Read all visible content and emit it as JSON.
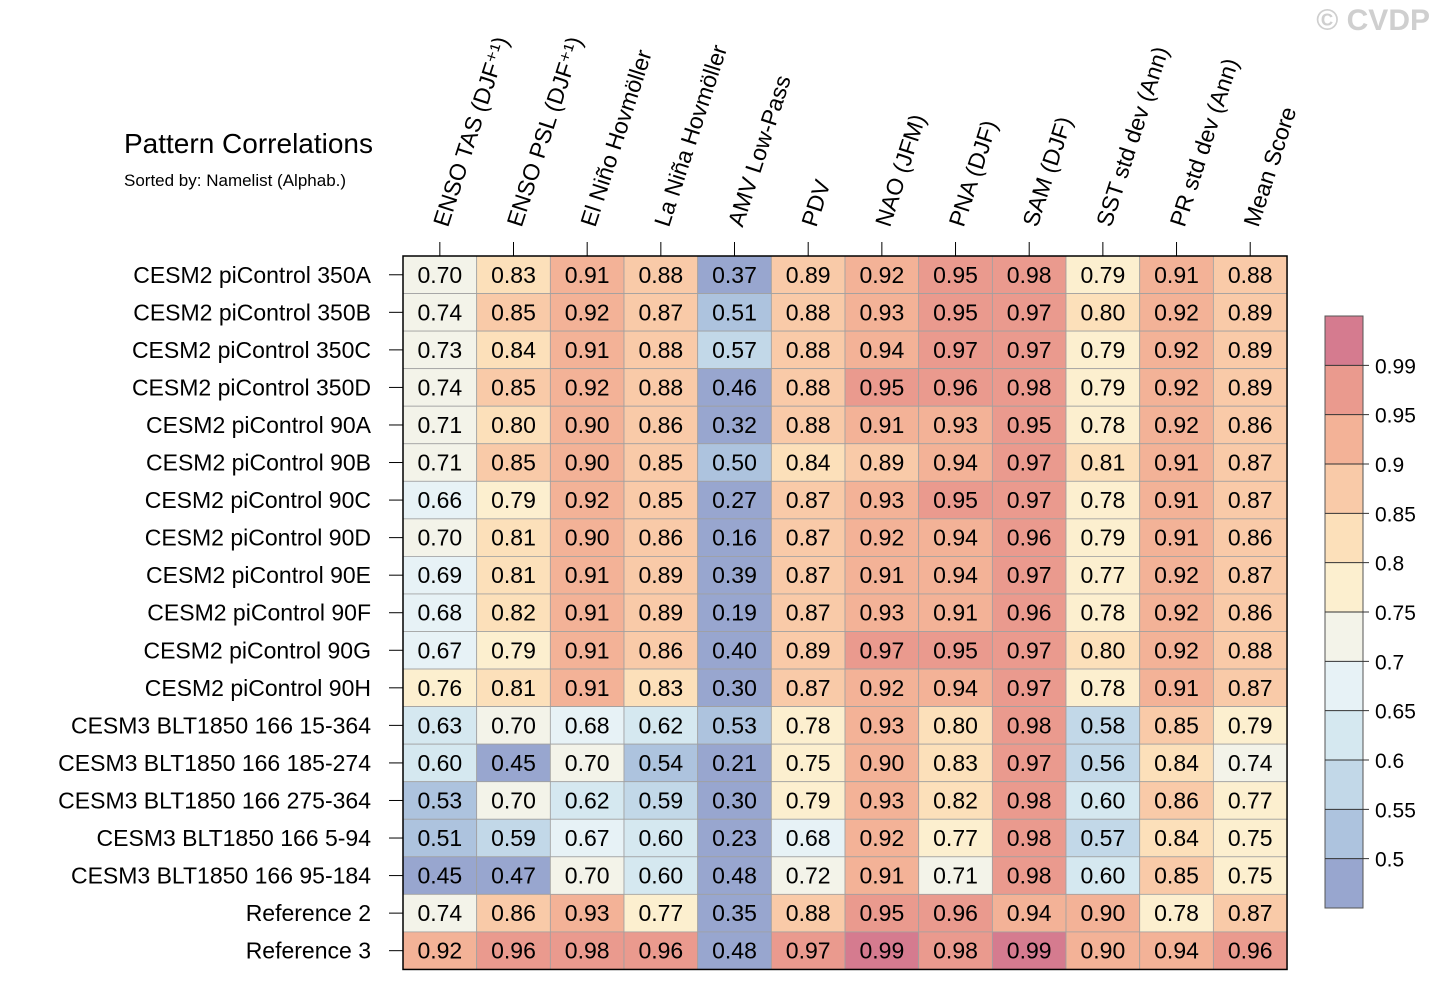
{
  "watermark": "© CVDP",
  "chart_data": {
    "type": "heatmap",
    "title": "Pattern Correlations",
    "subtitle": "Sorted by: Namelist (Alphab.)",
    "columns": [
      "ENSO TAS (DJF⁺¹)",
      "ENSO PSL (DJF⁺¹)",
      "El Niño Hovmöller",
      "La Niña Hovmöller",
      "AMV Low-Pass",
      "PDV",
      "NAO (JFM)",
      "PNA (DJF)",
      "SAM (DJF)",
      "SST std dev (Ann)",
      "PR std dev (Ann)",
      "Mean Score"
    ],
    "rows": [
      "CESM2 piControl 350A",
      "CESM2 piControl 350B",
      "CESM2 piControl 350C",
      "CESM2 piControl 350D",
      "CESM2 piControl 90A",
      "CESM2 piControl 90B",
      "CESM2 piControl 90C",
      "CESM2 piControl 90D",
      "CESM2 piControl 90E",
      "CESM2 piControl 90F",
      "CESM2 piControl 90G",
      "CESM2 piControl 90H",
      "CESM3 BLT1850 166 15-364",
      "CESM3 BLT1850 166 185-274",
      "CESM3 BLT1850 166 275-364",
      "CESM3 BLT1850 166 5-94",
      "CESM3 BLT1850 166 95-184",
      "Reference 2",
      "Reference 3"
    ],
    "values": [
      [
        "0.70",
        "0.83",
        "0.91",
        "0.88",
        "0.37",
        "0.89",
        "0.92",
        "0.95",
        "0.98",
        "0.79",
        "0.91",
        "0.88"
      ],
      [
        "0.74",
        "0.85",
        "0.92",
        "0.87",
        "0.51",
        "0.88",
        "0.93",
        "0.95",
        "0.97",
        "0.80",
        "0.92",
        "0.89"
      ],
      [
        "0.73",
        "0.84",
        "0.91",
        "0.88",
        "0.57",
        "0.88",
        "0.94",
        "0.97",
        "0.97",
        "0.79",
        "0.92",
        "0.89"
      ],
      [
        "0.74",
        "0.85",
        "0.92",
        "0.88",
        "0.46",
        "0.88",
        "0.95",
        "0.96",
        "0.98",
        "0.79",
        "0.92",
        "0.89"
      ],
      [
        "0.71",
        "0.80",
        "0.90",
        "0.86",
        "0.32",
        "0.88",
        "0.91",
        "0.93",
        "0.95",
        "0.78",
        "0.92",
        "0.86"
      ],
      [
        "0.71",
        "0.85",
        "0.90",
        "0.85",
        "0.50",
        "0.84",
        "0.89",
        "0.94",
        "0.97",
        "0.81",
        "0.91",
        "0.87"
      ],
      [
        "0.66",
        "0.79",
        "0.92",
        "0.85",
        "0.27",
        "0.87",
        "0.93",
        "0.95",
        "0.97",
        "0.78",
        "0.91",
        "0.87"
      ],
      [
        "0.70",
        "0.81",
        "0.90",
        "0.86",
        "0.16",
        "0.87",
        "0.92",
        "0.94",
        "0.96",
        "0.79",
        "0.91",
        "0.86"
      ],
      [
        "0.69",
        "0.81",
        "0.91",
        "0.89",
        "0.39",
        "0.87",
        "0.91",
        "0.94",
        "0.97",
        "0.77",
        "0.92",
        "0.87"
      ],
      [
        "0.68",
        "0.82",
        "0.91",
        "0.89",
        "0.19",
        "0.87",
        "0.93",
        "0.91",
        "0.96",
        "0.78",
        "0.92",
        "0.86"
      ],
      [
        "0.67",
        "0.79",
        "0.91",
        "0.86",
        "0.40",
        "0.89",
        "0.97",
        "0.95",
        "0.97",
        "0.80",
        "0.92",
        "0.88"
      ],
      [
        "0.76",
        "0.81",
        "0.91",
        "0.83",
        "0.30",
        "0.87",
        "0.92",
        "0.94",
        "0.97",
        "0.78",
        "0.91",
        "0.87"
      ],
      [
        "0.63",
        "0.70",
        "0.68",
        "0.62",
        "0.53",
        "0.78",
        "0.93",
        "0.80",
        "0.98",
        "0.58",
        "0.85",
        "0.79"
      ],
      [
        "0.60",
        "0.45",
        "0.70",
        "0.54",
        "0.21",
        "0.75",
        "0.90",
        "0.83",
        "0.97",
        "0.56",
        "0.84",
        "0.74"
      ],
      [
        "0.53",
        "0.70",
        "0.62",
        "0.59",
        "0.30",
        "0.79",
        "0.93",
        "0.82",
        "0.98",
        "0.60",
        "0.86",
        "0.77"
      ],
      [
        "0.51",
        "0.59",
        "0.67",
        "0.60",
        "0.23",
        "0.68",
        "0.92",
        "0.77",
        "0.98",
        "0.57",
        "0.84",
        "0.75"
      ],
      [
        "0.45",
        "0.47",
        "0.70",
        "0.60",
        "0.48",
        "0.72",
        "0.91",
        "0.71",
        "0.98",
        "0.60",
        "0.85",
        "0.75"
      ],
      [
        "0.74",
        "0.86",
        "0.93",
        "0.77",
        "0.35",
        "0.88",
        "0.95",
        "0.96",
        "0.94",
        "0.90",
        "0.78",
        "0.87"
      ],
      [
        "0.92",
        "0.96",
        "0.98",
        "0.96",
        "0.48",
        "0.97",
        "0.99",
        "0.98",
        "0.99",
        "0.90",
        "0.94",
        "0.96"
      ]
    ],
    "colorbar": {
      "levels": [
        0.5,
        0.55,
        0.6,
        0.65,
        0.7,
        0.75,
        0.8,
        0.85,
        0.9,
        0.95,
        0.99
      ],
      "labels": [
        "0.5",
        "0.55",
        "0.6",
        "0.65",
        "0.7",
        "0.75",
        "0.8",
        "0.85",
        "0.9",
        "0.95",
        "0.99"
      ],
      "colors": [
        "#98a6cf",
        "#adc3de",
        "#c2d8e8",
        "#d5e8f0",
        "#e7f2f6",
        "#f3f3e9",
        "#fcefcf",
        "#fce0ba",
        "#f9caa8",
        "#f3b297",
        "#ea9a8e",
        "#d57b8f"
      ]
    }
  }
}
